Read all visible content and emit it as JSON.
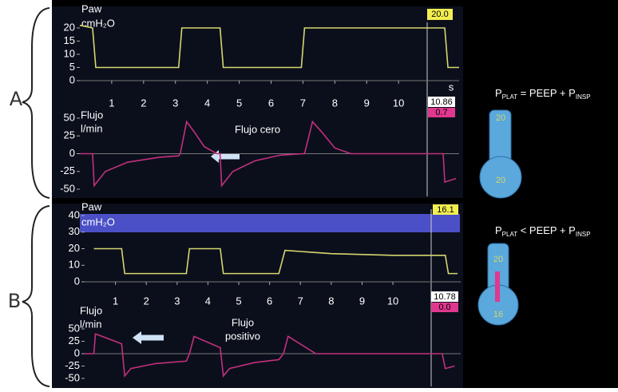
{
  "labels": {
    "a": "A",
    "b": "B"
  },
  "panel_a": {
    "paw": "Paw",
    "unit": "cmH₂O",
    "paw_readout": "20.0",
    "time_unit": "s",
    "time_readout": "10.86",
    "flow_readout": "0.7",
    "flow_label": "Flujo",
    "flow_unit": "l/min",
    "annotation": [
      "Flujo cero"
    ],
    "formula": [
      "P",
      "PLAT",
      " = PEEP + P",
      "INSP"
    ],
    "thermo_top": "20",
    "thermo_bottom": "20"
  },
  "panel_b": {
    "paw": "Paw",
    "unit": "cmH₂O",
    "paw_readout": "16.1",
    "time_readout": "10.78",
    "flow_readout": "0.0",
    "flow_label": "Flujo",
    "flow_unit": "l/min",
    "annotation": [
      "Flujo",
      "positivo"
    ],
    "formula": [
      "P",
      "PLAT",
      " < PEEP + P",
      "INSP"
    ],
    "thermo_top": "20",
    "thermo_bottom": "16"
  },
  "chart_data": [
    {
      "type": "line",
      "color": "#d6d66e",
      "x": [
        0,
        0.4,
        0.5,
        3.1,
        3.2,
        4.4,
        4.5,
        6.95,
        7.05,
        11.45,
        11.55,
        11.9
      ],
      "values": [
        21,
        20,
        5,
        5,
        20,
        20,
        5,
        5,
        20,
        20,
        5,
        5
      ],
      "xlim": [
        0,
        11.9
      ],
      "xticks": [
        1,
        2,
        3,
        4,
        5,
        6,
        7,
        8,
        9,
        10
      ],
      "ylim": [
        0,
        20
      ],
      "yticks": [
        0,
        5,
        10,
        15,
        20
      ]
    },
    {
      "type": "line",
      "color": "#c2307e",
      "x": [
        0,
        0.4,
        0.45,
        0.8,
        1.5,
        2.5,
        3.1,
        3.15,
        3.35,
        3.6,
        3.9,
        4.3,
        4.4,
        4.45,
        4.8,
        5.5,
        6.3,
        7.0,
        7.05,
        7.3,
        7.6,
        8.0,
        8.5,
        11.4,
        11.45,
        11.8
      ],
      "values": [
        0,
        0,
        -45,
        -25,
        -12,
        -5,
        -3,
        0,
        45,
        30,
        10,
        0,
        0,
        -45,
        -25,
        -10,
        -2,
        0,
        0,
        45,
        30,
        8,
        0,
        0,
        -40,
        -35
      ],
      "xlim": [
        0,
        11.9
      ],
      "ylim": [
        -50,
        50
      ],
      "yticks": [
        -50,
        -25,
        0,
        25,
        50
      ]
    },
    {
      "type": "line",
      "color": "#d6d66e",
      "x": [
        0.3,
        1.2,
        1.3,
        3.3,
        3.4,
        4.4,
        4.5,
        6.3,
        6.5,
        8,
        10,
        11.7,
        11.8,
        12.1
      ],
      "values": [
        20,
        20,
        5,
        5,
        20,
        20,
        5,
        5,
        19,
        17,
        16,
        16,
        5,
        5
      ],
      "xlim": [
        0,
        12.2
      ],
      "xticks": [
        1,
        2,
        3,
        4,
        5,
        6,
        7,
        8,
        9,
        10
      ],
      "ylim": [
        0,
        40
      ],
      "yticks": [
        0,
        10,
        20,
        30,
        40
      ]
    },
    {
      "type": "line",
      "color": "#c2307e",
      "x": [
        0,
        0.3,
        0.35,
        1.2,
        1.3,
        1.5,
        2.3,
        3.3,
        3.4,
        3.55,
        4.4,
        4.5,
        4.7,
        5.5,
        6.3,
        6.45,
        6.6,
        7.5,
        11.6,
        11.7,
        12.0
      ],
      "values": [
        0,
        0,
        40,
        20,
        -45,
        -30,
        -20,
        -15,
        0,
        35,
        12,
        -45,
        -30,
        -18,
        -12,
        0,
        35,
        0,
        0,
        -30,
        -25
      ],
      "xlim": [
        0,
        12.2
      ],
      "ylim": [
        -50,
        50
      ],
      "yticks": [
        -50,
        -25,
        0,
        25,
        50
      ]
    }
  ]
}
